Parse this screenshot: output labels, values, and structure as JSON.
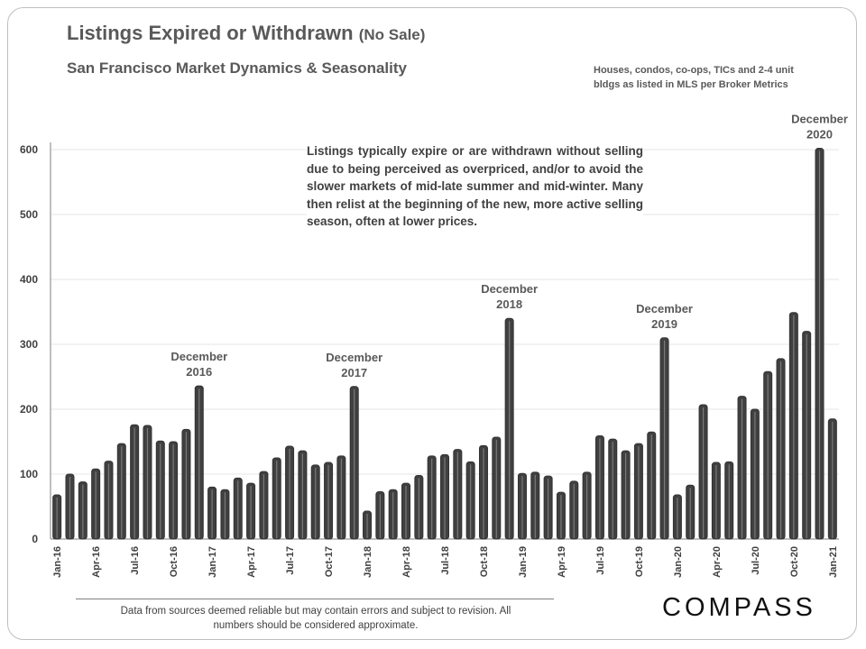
{
  "header": {
    "title": "Listings Expired or Withdrawn",
    "title_suffix": "(No Sale)",
    "subtitle": "San Francisco Market Dynamics & Seasonality",
    "note": "Houses, condos, co-ops, TICs and 2-4 unit bldgs as listed in MLS per Broker Metrics"
  },
  "callout": "Listings typically expire or are withdrawn without selling due to being perceived as overpriced, and/or to avoid the slower markets of mid-late summer and mid-winter. Many then relist at the beginning of the new, more active selling season, often at lower prices.",
  "footer": {
    "disclaimer": "Data from sources deemed reliable but may contain errors and subject to revision.  All numbers should be considered approximate.",
    "logo": "COMPASS"
  },
  "chart_data": {
    "type": "bar",
    "ylim": [
      0,
      600
    ],
    "yticks": [
      0,
      100,
      200,
      300,
      400,
      500,
      600
    ],
    "grid": true,
    "bar_color": "#404040",
    "x_tick_labels": [
      "Jan-16",
      "Apr-16",
      "Jul-16",
      "Oct-16",
      "Jan-17",
      "Apr-17",
      "Jul-17",
      "Oct-17",
      "Jan-18",
      "Apr-18",
      "Jul-18",
      "Oct-18",
      "Jan-19",
      "Apr-19",
      "Jul-19",
      "Oct-19",
      "Jan-20",
      "Apr-20",
      "Jul-20",
      "Oct-20",
      "Jan-21"
    ],
    "start_month": "Jan-16",
    "values": [
      68,
      100,
      88,
      108,
      120,
      147,
      176,
      175,
      151,
      150,
      169,
      236,
      80,
      76,
      94,
      86,
      104,
      125,
      143,
      136,
      114,
      118,
      128,
      235,
      43,
      73,
      76,
      86,
      98,
      128,
      130,
      138,
      119,
      144,
      157,
      340,
      101,
      103,
      97,
      72,
      89,
      103,
      159,
      154,
      136,
      147,
      165,
      310,
      68,
      83,
      207,
      118,
      119,
      220,
      200,
      258,
      278,
      349,
      320,
      602,
      185
    ],
    "annotations": [
      {
        "index": 11,
        "lines": [
          "December",
          "2016"
        ]
      },
      {
        "index": 23,
        "lines": [
          "December",
          "2017"
        ]
      },
      {
        "index": 35,
        "lines": [
          "December",
          "2018"
        ]
      },
      {
        "index": 47,
        "lines": [
          "December",
          "2019"
        ]
      },
      {
        "index": 59,
        "lines": [
          "December",
          "2020"
        ]
      }
    ]
  }
}
